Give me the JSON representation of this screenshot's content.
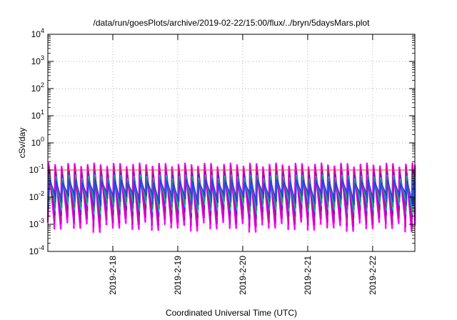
{
  "chart_data": {
    "type": "line",
    "title": "/data/run/goesPlots/archive/2019-02-22/15:00/flux/../bryn/5daysMars.plot",
    "xlabel": "Coordinated Universal Time (UTC)",
    "ylabel": "cSv/day",
    "yscale": "log",
    "ylim": [
      0.0001,
      10000
    ],
    "xlim": [
      0,
      5.65
    ],
    "x_ticks": [
      {
        "x": 1.0,
        "label": "2019-2-18"
      },
      {
        "x": 2.0,
        "label": "2019-2-19"
      },
      {
        "x": 3.0,
        "label": "2019-2-20"
      },
      {
        "x": 4.0,
        "label": "2019-2-21"
      },
      {
        "x": 5.0,
        "label": "2019-2-22"
      }
    ],
    "y_ticks": [
      {
        "value": 0.0001,
        "base": "10",
        "exp": "-4"
      },
      {
        "value": 0.001,
        "base": "10",
        "exp": "-3"
      },
      {
        "value": 0.01,
        "base": "10",
        "exp": "-2"
      },
      {
        "value": 0.1,
        "base": "10",
        "exp": "-1"
      },
      {
        "value": 1,
        "base": "10",
        "exp": "0"
      },
      {
        "value": 10,
        "base": "10",
        "exp": "1"
      },
      {
        "value": 100,
        "base": "10",
        "exp": "2"
      },
      {
        "value": 1000,
        "base": "10",
        "exp": "3"
      },
      {
        "value": 10000,
        "base": "10",
        "exp": "4"
      }
    ],
    "grid": true,
    "reference_line": {
      "value": 0.1,
      "color": "#ff3333"
    },
    "sawtooth": {
      "period_days": 0.1,
      "peak": [
        0.16,
        0.13,
        0.1,
        0.08,
        0.06,
        0.05,
        0.04
      ],
      "trough": [
        0.0013,
        0.002,
        0.003,
        0.004,
        0.006,
        0.008,
        0.012
      ]
    },
    "series": [
      {
        "color": "#ff00ff"
      },
      {
        "color": "#cc00cc"
      },
      {
        "color": "#b03060"
      },
      {
        "color": "#9400d3"
      },
      {
        "color": "#00c0c0"
      },
      {
        "color": "#2e8b57"
      },
      {
        "color": "#1e3cff"
      }
    ]
  }
}
